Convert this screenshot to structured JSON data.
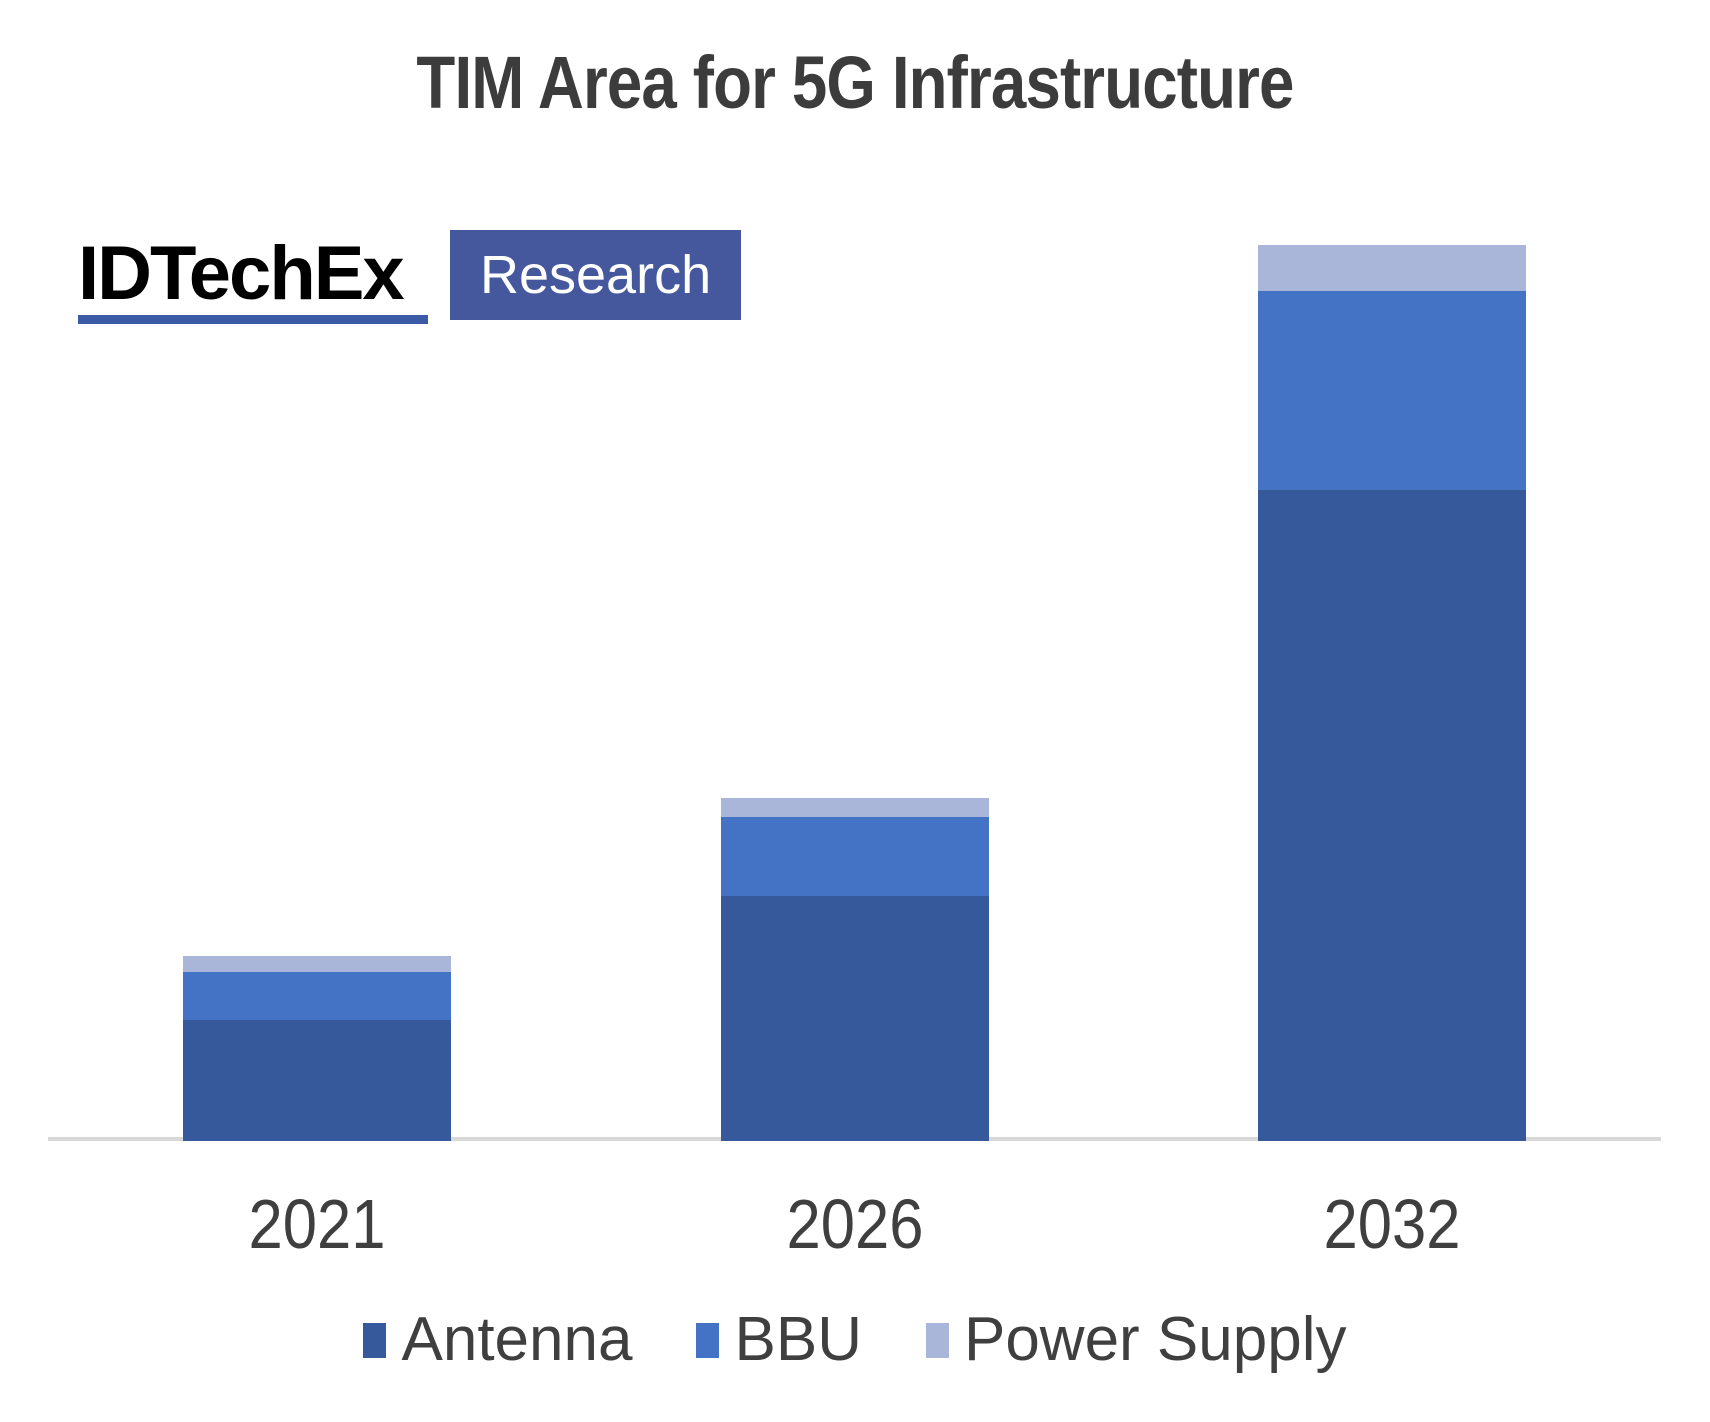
{
  "logo": {
    "brand": "IDTechEx",
    "badge": "Research",
    "brand_color": "#000000",
    "underline_color": "#3C5BA6",
    "badge_bg": "#45589E",
    "badge_text_color": "#FFFFFF"
  },
  "chart_data": {
    "type": "bar",
    "stacked": true,
    "title": "TIM Area for 5G Infrastructure",
    "title_color": "#3C3C3C",
    "categories": [
      "2021",
      "2026",
      "2032"
    ],
    "series": [
      {
        "name": "Antenna",
        "color": "#35599A",
        "values": [
          121,
          245,
          651
        ]
      },
      {
        "name": "BBU",
        "color": "#4472C4",
        "values": [
          48,
          79,
          199
        ]
      },
      {
        "name": "Power Supply",
        "color": "#A9B6DA",
        "values": [
          16,
          19,
          46
        ]
      }
    ],
    "value_units": "relative (y-axis not labeled; values proportional to rendered bar heights, px)",
    "xlabel": "",
    "ylabel": "",
    "ylim": [
      0,
      990
    ],
    "grid": false,
    "y_axis_shown": false,
    "axis_line_color": "#D8D8D8",
    "tick_label_color": "#3F3F3F",
    "legend_position": "bottom",
    "legend": [
      "Antenna",
      "BBU",
      "Power Supply"
    ]
  }
}
